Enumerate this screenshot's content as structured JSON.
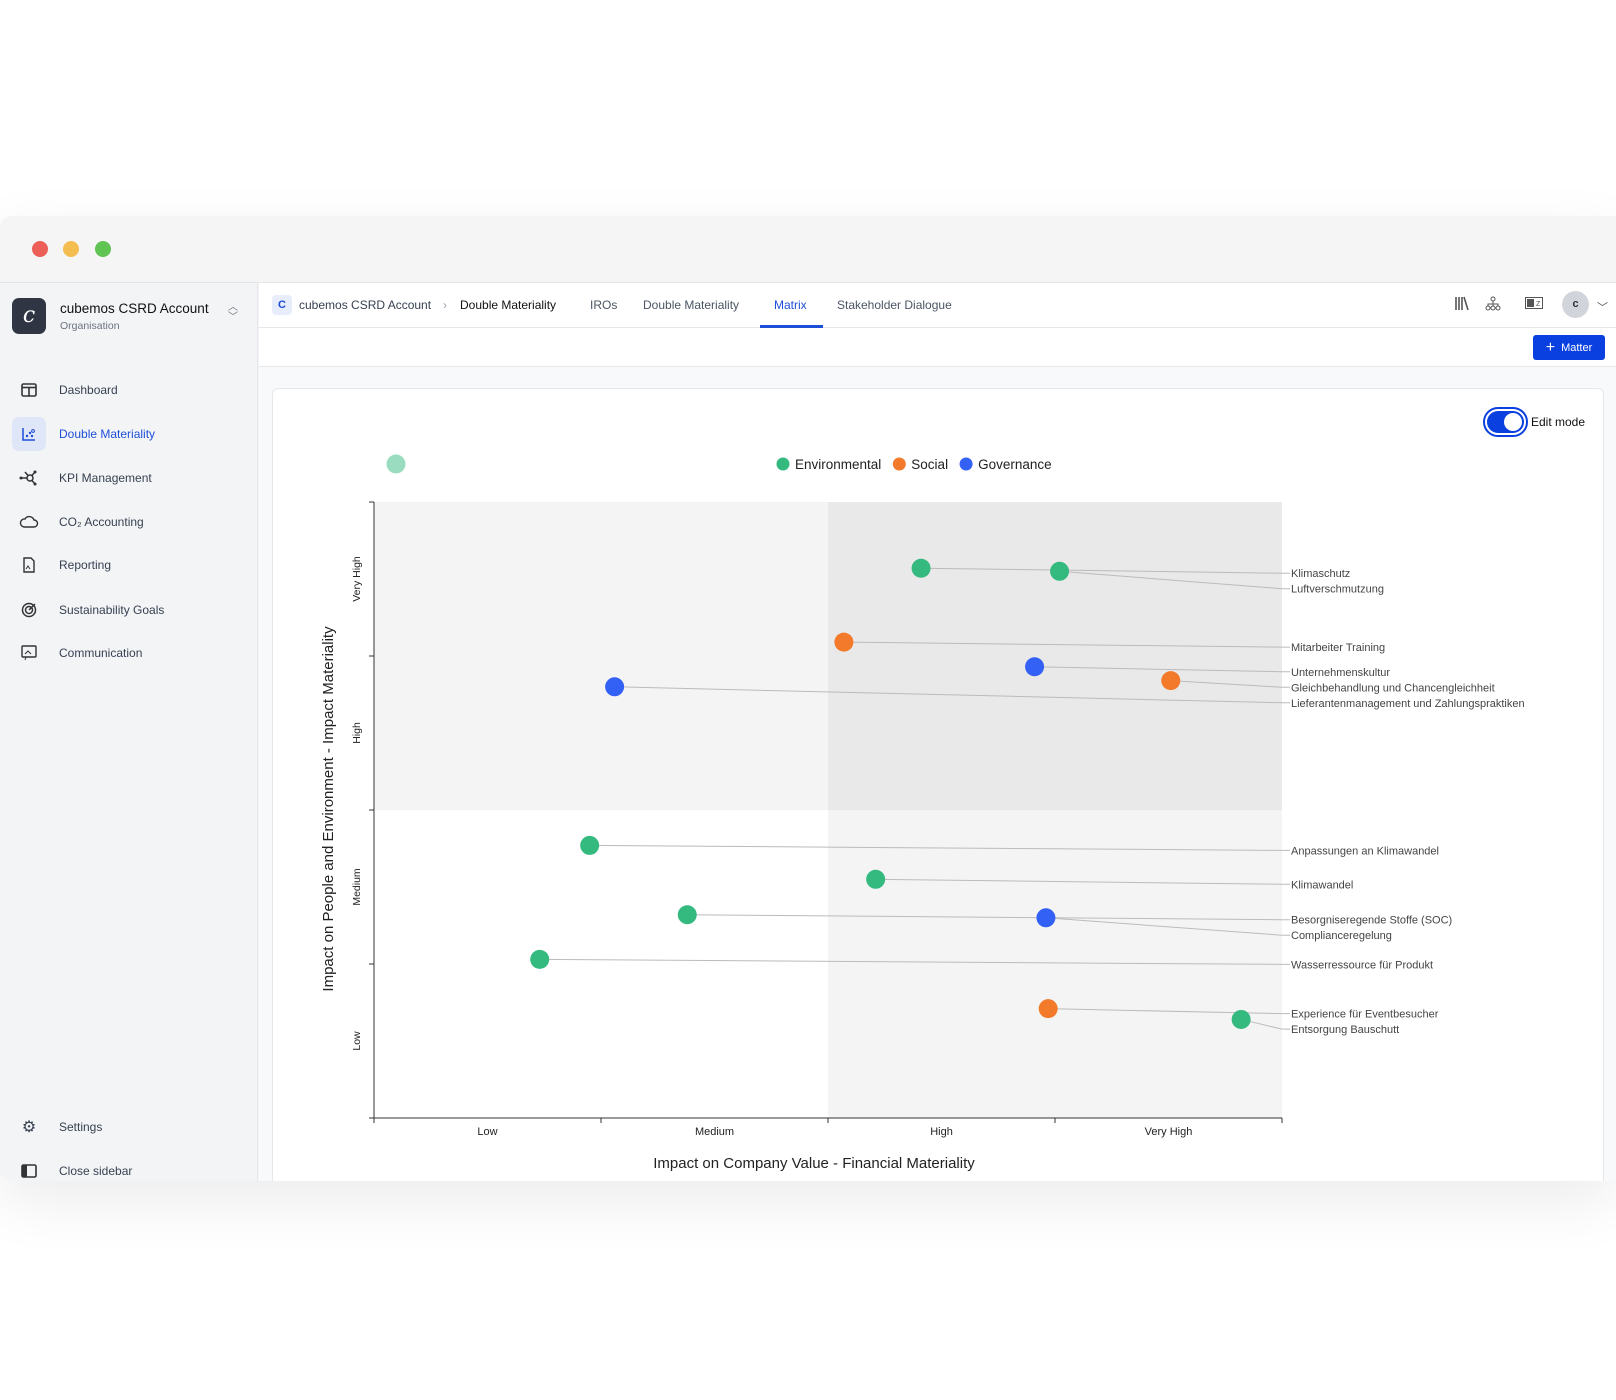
{
  "window": {
    "controls": [
      "close",
      "minimize",
      "maximize"
    ],
    "colors": {
      "close": "#ec5f57",
      "minimize": "#f4bd4f",
      "maximize": "#5fc454"
    }
  },
  "sidebar": {
    "org": {
      "logo": "c",
      "name": "cubemos CSRD Account",
      "subtitle": "Organisation"
    },
    "items": [
      {
        "label": "Dashboard",
        "icon": "layout-icon"
      },
      {
        "label": "Double Materiality",
        "icon": "scatter-chart-icon",
        "active": true
      },
      {
        "label": "KPI Management",
        "icon": "network-icon"
      },
      {
        "label": "CO₂ Accounting",
        "icon": "cloud-icon"
      },
      {
        "label": "Reporting",
        "icon": "report-file-icon"
      },
      {
        "label": "Sustainability Goals",
        "icon": "target-icon"
      },
      {
        "label": "Communication",
        "icon": "presentation-icon"
      }
    ],
    "footer": [
      {
        "label": "Settings",
        "icon": "gear-icon"
      },
      {
        "label": "Close sidebar",
        "icon": "sidebar-icon"
      }
    ]
  },
  "header": {
    "breadcrumb": {
      "badge": "C",
      "account": "cubemos CSRD Account",
      "section": "Double Materiality"
    },
    "tabs": [
      {
        "label": "IROs"
      },
      {
        "label": "Double Materiality"
      },
      {
        "label": "Matrix",
        "active": true
      },
      {
        "label": "Stakeholder Dialogue"
      }
    ],
    "avatar": "c"
  },
  "toolbar": {
    "add_label": "Matter"
  },
  "card": {
    "edit_mode_label": "Edit mode",
    "edit_mode_on": true
  },
  "chart_data": {
    "type": "scatter",
    "xlabel": "Impact on Company Value - Financial Materiality",
    "ylabel": "Impact on People and Environment - Impact Materiality",
    "x_ticks": [
      "Low",
      "Medium",
      "High",
      "Very High"
    ],
    "y_ticks": [
      "Low",
      "Medium",
      "High",
      "Very High"
    ],
    "xlim": [
      0,
      4
    ],
    "ylim": [
      0,
      4
    ],
    "legend": {
      "position": "top-center",
      "entries": [
        {
          "name": "Environmental",
          "color": "#34b97f"
        },
        {
          "name": "Social",
          "color": "#f37a2b"
        },
        {
          "name": "Governance",
          "color": "#3461f5"
        }
      ]
    },
    "quadrant_colors": {
      "top_left": "#f4f4f4",
      "top_right": "#e9e9e9",
      "bottom_left": "#ffffff",
      "bottom_right": "#f4f4f4"
    },
    "points": [
      {
        "label": "Klimaschutz",
        "category": "Environmental",
        "x": 2.41,
        "y": 3.57
      },
      {
        "label": "Luftverschmutzung",
        "category": "Environmental",
        "x": 3.02,
        "y": 3.55
      },
      {
        "label": "Mitarbeiter Training",
        "category": "Social",
        "x": 2.07,
        "y": 3.09
      },
      {
        "label": "Unternehmenskultur",
        "category": "Governance",
        "x": 2.91,
        "y": 2.93
      },
      {
        "label": "Gleichbehandlung und Chancengleichheit",
        "category": "Social",
        "x": 3.51,
        "y": 2.84
      },
      {
        "label": "Lieferantenmanagement und Zahlungspraktiken",
        "category": "Governance",
        "x": 1.06,
        "y": 2.8
      },
      {
        "label": "Anpassungen an Klimawandel",
        "category": "Environmental",
        "x": 0.95,
        "y": 1.77
      },
      {
        "label": "Klimawandel",
        "category": "Environmental",
        "x": 2.21,
        "y": 1.55
      },
      {
        "label": "Besorgniseregende Stoffe (SOC)",
        "category": "Environmental",
        "x": 1.38,
        "y": 1.32
      },
      {
        "label": "Complianceregelung",
        "category": "Governance",
        "x": 2.96,
        "y": 1.3
      },
      {
        "label": "Wasserressource für Produkt",
        "category": "Environmental",
        "x": 0.73,
        "y": 1.03
      },
      {
        "label": "Experience für Eventbesucher",
        "category": "Social",
        "x": 2.97,
        "y": 0.71
      },
      {
        "label": "Entsorgung Bauschutt",
        "category": "Environmental",
        "x": 3.82,
        "y": 0.64
      }
    ]
  }
}
